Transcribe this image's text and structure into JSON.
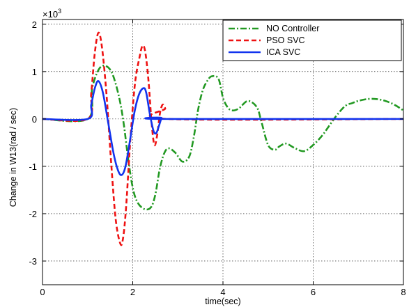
{
  "chart_data": {
    "type": "line",
    "title": "",
    "xlabel": "time(sec)",
    "ylabel": "Change in W13(rad / sec)",
    "y_multiplier_label": "×10",
    "y_multiplier_exponent": "3",
    "xlim": [
      0,
      8
    ],
    "ylim": [
      -3.5,
      2.1
    ],
    "x_ticks": [
      0,
      2,
      4,
      6,
      8
    ],
    "x_tick_labels": [
      "0",
      "2",
      "4",
      "6",
      "8"
    ],
    "y_ticks": [
      2,
      1,
      0,
      -1,
      -2,
      -3
    ],
    "y_tick_labels": [
      "2",
      "1",
      "0",
      "-1",
      "-2",
      "-3"
    ],
    "grid": true,
    "legend_position": "top-right",
    "series": [
      {
        "name": "NO Controller",
        "color": "#229922",
        "dash": "dashdot",
        "x": [
          0,
          1.0,
          1.1,
          1.25,
          1.4,
          1.55,
          1.7,
          1.8,
          1.9,
          2.0,
          2.1,
          2.25,
          2.4,
          2.5,
          2.6,
          2.7,
          2.8,
          2.95,
          3.1,
          3.25,
          3.35,
          3.45,
          3.55,
          3.65,
          3.75,
          3.9,
          4.0,
          4.1,
          4.2,
          4.35,
          4.55,
          4.75,
          4.85,
          5.0,
          5.15,
          5.25,
          5.4,
          5.6,
          5.8,
          6.0,
          6.2,
          6.35,
          6.5,
          6.65,
          6.75,
          6.85,
          7.0,
          7.2,
          7.4,
          7.6,
          7.8,
          8.0
        ],
        "y": [
          0,
          0,
          0.65,
          1.05,
          1.12,
          0.95,
          0.45,
          -0.1,
          -0.85,
          -1.45,
          -1.75,
          -1.9,
          -1.87,
          -1.6,
          -1.05,
          -0.72,
          -0.62,
          -0.72,
          -0.9,
          -0.8,
          -0.4,
          0.2,
          0.6,
          0.8,
          0.9,
          0.85,
          0.45,
          0.25,
          0.18,
          0.22,
          0.38,
          0.25,
          -0.05,
          -0.55,
          -0.65,
          -0.58,
          -0.52,
          -0.62,
          -0.68,
          -0.55,
          -0.35,
          -0.15,
          0.05,
          0.22,
          0.3,
          0.33,
          0.38,
          0.42,
          0.42,
          0.38,
          0.3,
          0.18
        ]
      },
      {
        "name": "PSO SVC",
        "color": "#ee1111",
        "dash": "dashed",
        "x": [
          0,
          1.0,
          1.08,
          1.16,
          1.24,
          1.32,
          1.42,
          1.52,
          1.62,
          1.72,
          1.78,
          1.85,
          1.95,
          2.05,
          2.15,
          2.22,
          2.28,
          2.35,
          2.42,
          2.48,
          2.54,
          2.6,
          2.66,
          2.72,
          2.78,
          8.0
        ],
        "y": [
          0,
          0,
          0.55,
          1.4,
          1.82,
          1.5,
          0.5,
          -0.9,
          -2.1,
          -2.62,
          -2.55,
          -1.9,
          -0.4,
          0.75,
          1.3,
          1.55,
          1.4,
          0.8,
          -0.1,
          -0.55,
          -0.35,
          0.1,
          0.3,
          0.22,
          0,
          0
        ]
      },
      {
        "name": "ICA SVC",
        "color": "#1133ee",
        "dash": "solid",
        "x": [
          0,
          1.0,
          1.08,
          1.16,
          1.24,
          1.34,
          1.46,
          1.58,
          1.68,
          1.76,
          1.84,
          1.94,
          2.04,
          2.14,
          2.24,
          2.3,
          2.38,
          2.46,
          2.52,
          2.58,
          2.64,
          2.68,
          8.0
        ],
        "y": [
          0,
          0,
          0.3,
          0.65,
          0.8,
          0.55,
          -0.1,
          -0.75,
          -1.1,
          -1.18,
          -1.0,
          -0.45,
          0.15,
          0.52,
          0.65,
          0.55,
          0.1,
          -0.25,
          -0.3,
          -0.15,
          0.02,
          0,
          0
        ]
      }
    ]
  }
}
